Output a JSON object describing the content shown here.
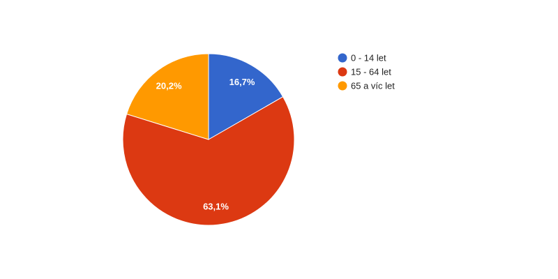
{
  "chart_data": {
    "type": "pie",
    "categories": [
      "0 - 14 let",
      "15 - 64 let",
      "65 a víc let"
    ],
    "values": [
      16.7,
      63.1,
      20.2
    ],
    "labels": [
      "16,7%",
      "63,1%",
      "20,2%"
    ],
    "colors": [
      "#3366cc",
      "#dc3912",
      "#ff9900"
    ],
    "start_angle": "12 o'clock",
    "direction": "clockwise",
    "legend_position": "right",
    "title": ""
  }
}
